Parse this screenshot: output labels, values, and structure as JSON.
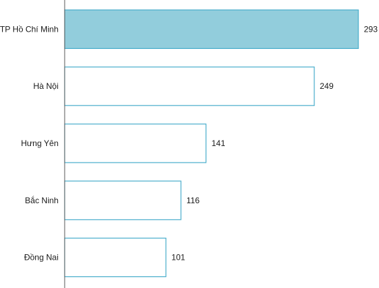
{
  "colors": {
    "bar_border": "#4aaecc",
    "bar_highlight_fill": "#92cddc",
    "bar_fill": "#ffffff",
    "axis": "#595959"
  },
  "chart_data": {
    "type": "bar",
    "orientation": "horizontal",
    "categories": [
      "TP Hồ Chí Minh",
      "Hà Nội",
      "Hưng Yên",
      "Bắc Ninh",
      "Đồng Nai"
    ],
    "values": [
      293,
      249,
      141,
      116,
      101
    ],
    "highlight_index": 0,
    "xlim": [
      0,
      300
    ],
    "grid": false,
    "legend": "none",
    "title": "",
    "xlabel": "",
    "ylabel": ""
  }
}
